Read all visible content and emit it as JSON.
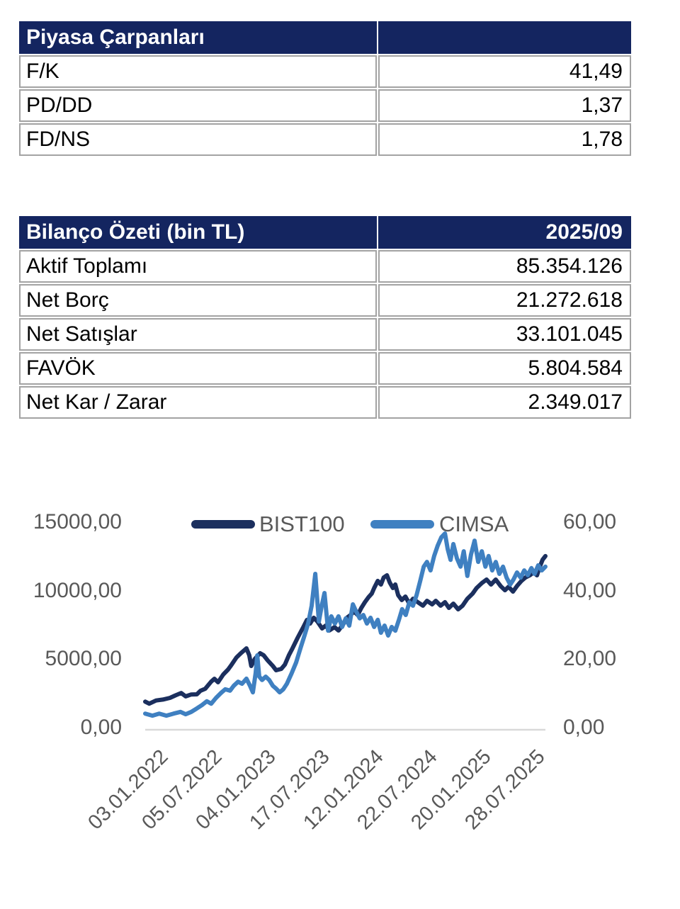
{
  "colors": {
    "table_header_bg": "#142560",
    "table_header_text": "#FFFFFF",
    "table_border": "#A3A3A3",
    "axis_text": "#595959",
    "axis_line": "#D9D9D9",
    "bist100_line": "#1B2F5E",
    "cimsa_line": "#3F80C1"
  },
  "tables": [
    {
      "title": "Piyasa Çarpanları",
      "header_value": "",
      "rows": [
        [
          "F/K",
          "41,49"
        ],
        [
          "PD/DD",
          "1,37"
        ],
        [
          "FD/NS",
          "1,78"
        ]
      ]
    },
    {
      "title": "Bilanço Özeti (bin TL)",
      "header_value": "2025/09",
      "rows": [
        [
          "Aktif Toplamı",
          "85.354.126"
        ],
        [
          "Net Borç",
          "21.272.618"
        ],
        [
          "Net Satışlar",
          "33.101.045"
        ],
        [
          "FAVÖK",
          "5.804.584"
        ],
        [
          "Net Kar / Zarar",
          "2.349.017"
        ]
      ]
    }
  ],
  "chart_data": {
    "type": "line",
    "title": "",
    "grid": false,
    "legend_position": "top",
    "x_ticks": [
      "03.01.2022",
      "05.07.2022",
      "04.01.2023",
      "17.07.2023",
      "12.01.2024",
      "22.07.2024",
      "20.01.2025",
      "28.07.2025"
    ],
    "x_encoding": "points use fraction of x-axis, 0 = 03.01.2022 tick, 1 = right edge",
    "left_axis": {
      "min": 0,
      "max": 15000,
      "ticks": [
        "15000,00",
        "10000,00",
        "5000,00",
        "0,00"
      ]
    },
    "right_axis": {
      "min": 0,
      "max": 60,
      "ticks": [
        "60,00",
        "40,00",
        "20,00",
        "0,00"
      ]
    },
    "series": [
      {
        "name": "BIST100",
        "axis": "left",
        "color": "#1B2F5E",
        "points": [
          [
            0.0,
            1900
          ],
          [
            0.01,
            1750
          ],
          [
            0.027,
            1980
          ],
          [
            0.044,
            2050
          ],
          [
            0.062,
            2170
          ],
          [
            0.075,
            2350
          ],
          [
            0.09,
            2530
          ],
          [
            0.101,
            2280
          ],
          [
            0.115,
            2420
          ],
          [
            0.129,
            2430
          ],
          [
            0.138,
            2690
          ],
          [
            0.15,
            2840
          ],
          [
            0.165,
            3360
          ],
          [
            0.173,
            3570
          ],
          [
            0.182,
            3310
          ],
          [
            0.195,
            3880
          ],
          [
            0.207,
            4240
          ],
          [
            0.216,
            4600
          ],
          [
            0.228,
            5120
          ],
          [
            0.239,
            5430
          ],
          [
            0.253,
            5790
          ],
          [
            0.26,
            5280
          ],
          [
            0.265,
            4500
          ],
          [
            0.274,
            5020
          ],
          [
            0.287,
            5430
          ],
          [
            0.296,
            5280
          ],
          [
            0.306,
            4910
          ],
          [
            0.319,
            4500
          ],
          [
            0.327,
            4190
          ],
          [
            0.34,
            4290
          ],
          [
            0.349,
            4600
          ],
          [
            0.359,
            5280
          ],
          [
            0.368,
            5790
          ],
          [
            0.381,
            6570
          ],
          [
            0.395,
            7340
          ],
          [
            0.404,
            7860
          ],
          [
            0.412,
            7600
          ],
          [
            0.421,
            8020
          ],
          [
            0.43,
            7760
          ],
          [
            0.442,
            7240
          ],
          [
            0.451,
            7450
          ],
          [
            0.46,
            7090
          ],
          [
            0.473,
            7340
          ],
          [
            0.483,
            7090
          ],
          [
            0.496,
            7600
          ],
          [
            0.504,
            8020
          ],
          [
            0.513,
            8220
          ],
          [
            0.522,
            8480
          ],
          [
            0.531,
            8220
          ],
          [
            0.54,
            8740
          ],
          [
            0.549,
            9160
          ],
          [
            0.558,
            9520
          ],
          [
            0.566,
            9780
          ],
          [
            0.572,
            10190
          ],
          [
            0.581,
            10710
          ],
          [
            0.589,
            10450
          ],
          [
            0.596,
            10960
          ],
          [
            0.604,
            11120
          ],
          [
            0.611,
            10600
          ],
          [
            0.619,
            10190
          ],
          [
            0.625,
            10450
          ],
          [
            0.632,
            9670
          ],
          [
            0.641,
            9310
          ],
          [
            0.65,
            9570
          ],
          [
            0.66,
            9050
          ],
          [
            0.669,
            9410
          ],
          [
            0.681,
            9160
          ],
          [
            0.694,
            8900
          ],
          [
            0.704,
            9260
          ],
          [
            0.717,
            9000
          ],
          [
            0.726,
            9260
          ],
          [
            0.738,
            8900
          ],
          [
            0.749,
            9160
          ],
          [
            0.759,
            8740
          ],
          [
            0.77,
            9050
          ],
          [
            0.782,
            8640
          ],
          [
            0.793,
            8900
          ],
          [
            0.805,
            9410
          ],
          [
            0.818,
            9780
          ],
          [
            0.828,
            10190
          ],
          [
            0.841,
            10550
          ],
          [
            0.853,
            10810
          ],
          [
            0.864,
            10450
          ],
          [
            0.876,
            10810
          ],
          [
            0.888,
            10340
          ],
          [
            0.899,
            10030
          ],
          [
            0.908,
            10290
          ],
          [
            0.919,
            9930
          ],
          [
            0.929,
            10340
          ],
          [
            0.94,
            10710
          ],
          [
            0.95,
            10960
          ],
          [
            0.961,
            11120
          ],
          [
            0.97,
            11330
          ],
          [
            0.979,
            11120
          ],
          [
            0.986,
            11740
          ],
          [
            0.993,
            12260
          ],
          [
            1.0,
            12520
          ]
        ]
      },
      {
        "name": "CIMSA",
        "axis": "right",
        "color": "#3F80C1",
        "points": [
          [
            0.0,
            4.1
          ],
          [
            0.018,
            3.5
          ],
          [
            0.035,
            4.1
          ],
          [
            0.053,
            3.5
          ],
          [
            0.071,
            4.1
          ],
          [
            0.088,
            4.6
          ],
          [
            0.101,
            3.9
          ],
          [
            0.115,
            4.6
          ],
          [
            0.129,
            5.6
          ],
          [
            0.142,
            6.6
          ],
          [
            0.154,
            7.7
          ],
          [
            0.165,
            7.0
          ],
          [
            0.177,
            8.7
          ],
          [
            0.189,
            10.1
          ],
          [
            0.2,
            11.2
          ],
          [
            0.212,
            10.8
          ],
          [
            0.221,
            12.2
          ],
          [
            0.232,
            13.4
          ],
          [
            0.242,
            12.8
          ],
          [
            0.253,
            14.3
          ],
          [
            0.262,
            12.2
          ],
          [
            0.269,
            10.3
          ],
          [
            0.276,
            15.9
          ],
          [
            0.28,
            21.1
          ],
          [
            0.285,
            14.9
          ],
          [
            0.292,
            13.9
          ],
          [
            0.301,
            14.9
          ],
          [
            0.31,
            13.9
          ],
          [
            0.319,
            12.2
          ],
          [
            0.327,
            11.4
          ],
          [
            0.336,
            10.3
          ],
          [
            0.345,
            11.2
          ],
          [
            0.354,
            12.8
          ],
          [
            0.366,
            15.9
          ],
          [
            0.377,
            19.0
          ],
          [
            0.388,
            23.2
          ],
          [
            0.398,
            26.9
          ],
          [
            0.407,
            30.4
          ],
          [
            0.416,
            35.6
          ],
          [
            0.425,
            44.9
          ],
          [
            0.434,
            31.0
          ],
          [
            0.441,
            35.6
          ],
          [
            0.448,
            39.3
          ],
          [
            0.457,
            28.3
          ],
          [
            0.465,
            32.5
          ],
          [
            0.474,
            30.4
          ],
          [
            0.483,
            32.5
          ],
          [
            0.492,
            29.4
          ],
          [
            0.501,
            31.9
          ],
          [
            0.51,
            29.8
          ],
          [
            0.519,
            36.0
          ],
          [
            0.527,
            33.9
          ],
          [
            0.536,
            31.9
          ],
          [
            0.545,
            32.9
          ],
          [
            0.554,
            30.4
          ],
          [
            0.563,
            32.1
          ],
          [
            0.572,
            29.4
          ],
          [
            0.581,
            31.5
          ],
          [
            0.589,
            27.7
          ],
          [
            0.598,
            29.8
          ],
          [
            0.607,
            26.9
          ],
          [
            0.616,
            29.4
          ],
          [
            0.625,
            28.3
          ],
          [
            0.634,
            31.5
          ],
          [
            0.642,
            34.6
          ],
          [
            0.651,
            32.9
          ],
          [
            0.66,
            36.6
          ],
          [
            0.669,
            35.6
          ],
          [
            0.678,
            38.7
          ],
          [
            0.687,
            42.8
          ],
          [
            0.696,
            47.0
          ],
          [
            0.704,
            48.4
          ],
          [
            0.713,
            45.9
          ],
          [
            0.722,
            50.1
          ],
          [
            0.731,
            53.2
          ],
          [
            0.74,
            55.6
          ],
          [
            0.749,
            56.7
          ],
          [
            0.756,
            52.1
          ],
          [
            0.763,
            49.0
          ],
          [
            0.77,
            53.6
          ],
          [
            0.779,
            49.4
          ],
          [
            0.788,
            47.0
          ],
          [
            0.796,
            51.5
          ],
          [
            0.805,
            44.3
          ],
          [
            0.814,
            50.5
          ],
          [
            0.823,
            54.6
          ],
          [
            0.832,
            48.4
          ],
          [
            0.841,
            51.5
          ],
          [
            0.85,
            47.0
          ],
          [
            0.858,
            50.1
          ],
          [
            0.867,
            45.9
          ],
          [
            0.876,
            48.4
          ],
          [
            0.885,
            44.9
          ],
          [
            0.894,
            47.0
          ],
          [
            0.903,
            43.8
          ],
          [
            0.912,
            41.8
          ],
          [
            0.92,
            43.2
          ],
          [
            0.929,
            45.3
          ],
          [
            0.938,
            43.8
          ],
          [
            0.947,
            45.9
          ],
          [
            0.956,
            44.5
          ],
          [
            0.965,
            46.6
          ],
          [
            0.973,
            44.9
          ],
          [
            0.982,
            47.4
          ],
          [
            0.991,
            45.9
          ],
          [
            1.0,
            47.0
          ]
        ]
      }
    ]
  }
}
